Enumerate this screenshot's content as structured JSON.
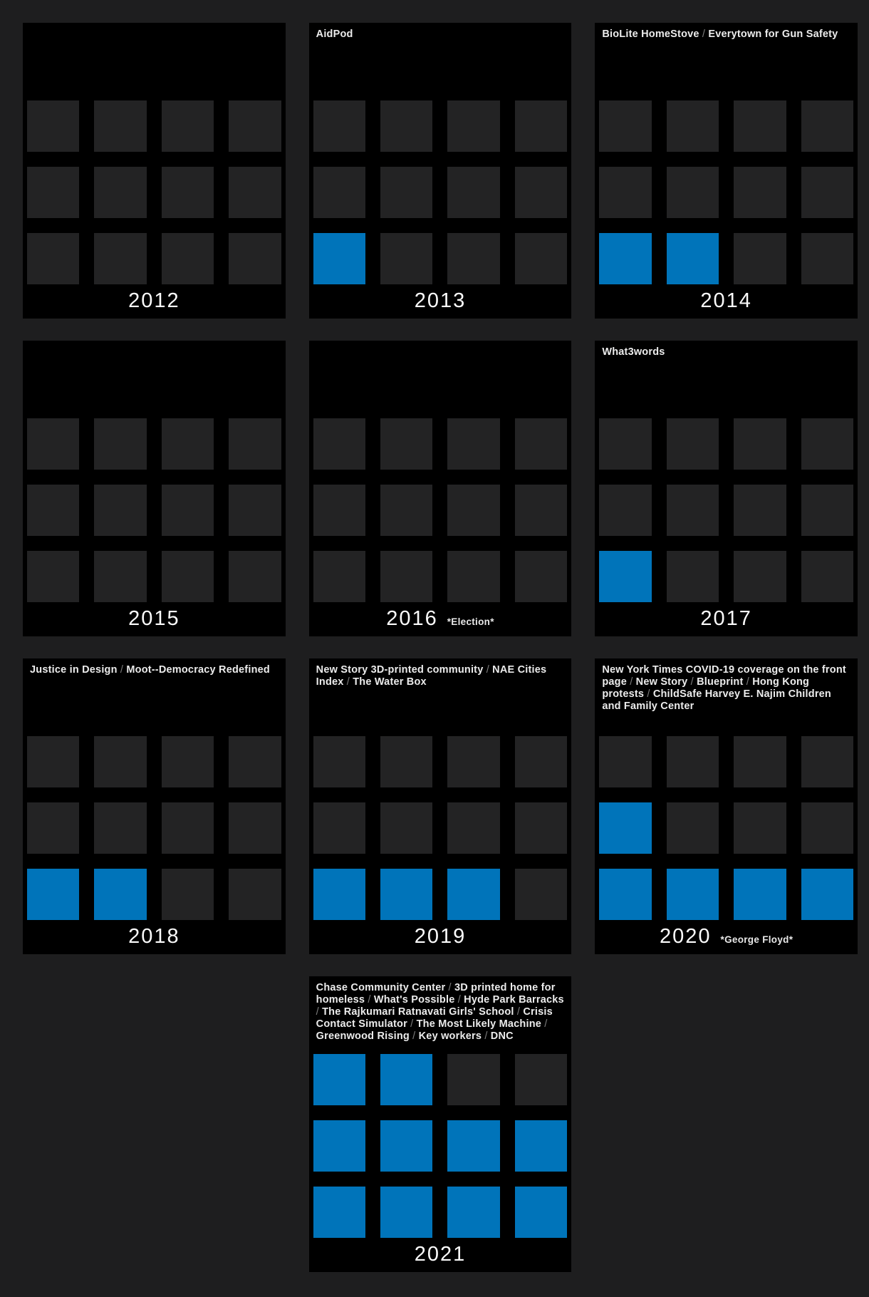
{
  "colors": {
    "page_bg": "#1e1e1f",
    "panel_bg": "#000000",
    "cell_empty": "#232324",
    "cell_filled": "#0074ba",
    "text_primary": "#ececec",
    "separator": "#7d7d7d"
  },
  "separator": " / ",
  "chart_data": {
    "type": "bar",
    "title": "",
    "xlabel": "",
    "ylabel": "",
    "categories": [
      "2012",
      "2013",
      "2014",
      "2015",
      "2016",
      "2017",
      "2018",
      "2019",
      "2020",
      "2021"
    ],
    "values": [
      0,
      1,
      2,
      0,
      0,
      1,
      2,
      3,
      5,
      10
    ],
    "ylim": [
      0,
      12
    ],
    "waffle_grid": {
      "rows": 3,
      "columns": 4,
      "cell_capacity": 12,
      "fill_origin": "bottom-left"
    },
    "annotations": [
      {
        "category": "2016",
        "text": "*Election*"
      },
      {
        "category": "2020",
        "text": "*George Floyd*"
      }
    ],
    "legend": {
      "shown": false
    }
  },
  "panels": [
    {
      "year": "2012",
      "count": 0,
      "annotation": "",
      "projects": []
    },
    {
      "year": "2013",
      "count": 1,
      "annotation": "",
      "projects": [
        "AidPod"
      ]
    },
    {
      "year": "2014",
      "count": 2,
      "annotation": "",
      "projects": [
        "BioLite HomeStove",
        "Everytown for Gun Safety"
      ]
    },
    {
      "year": "2015",
      "count": 0,
      "annotation": "",
      "projects": []
    },
    {
      "year": "2016",
      "count": 0,
      "annotation": "*Election*",
      "projects": []
    },
    {
      "year": "2017",
      "count": 1,
      "annotation": "",
      "projects": [
        "What3words"
      ]
    },
    {
      "year": "2018",
      "count": 2,
      "annotation": "",
      "projects": [
        "Justice in Design",
        "Moot--Democracy Redefined"
      ]
    },
    {
      "year": "2019",
      "count": 3,
      "annotation": "",
      "projects": [
        "New Story 3D-printed community",
        "NAE Cities Index",
        "The Water Box"
      ]
    },
    {
      "year": "2020",
      "count": 5,
      "annotation": "*George Floyd*",
      "projects": [
        "New York Times COVID-19 coverage on the front page",
        "New Story",
        "Blueprint",
        "Hong Kong protests",
        "ChildSafe Harvey E. Najim Children and Family Center"
      ]
    },
    {
      "year": "2021",
      "count": 10,
      "annotation": "",
      "projects": [
        "Chase Community Center",
        "3D printed home for homeless",
        "What's Possible",
        "Hyde Park Barracks",
        "The Rajkumari Ratnavati Girls' School",
        "Crisis Contact Simulator",
        "The Most Likely Machine",
        "Greenwood Rising",
        "Key workers",
        "DNC"
      ]
    }
  ]
}
